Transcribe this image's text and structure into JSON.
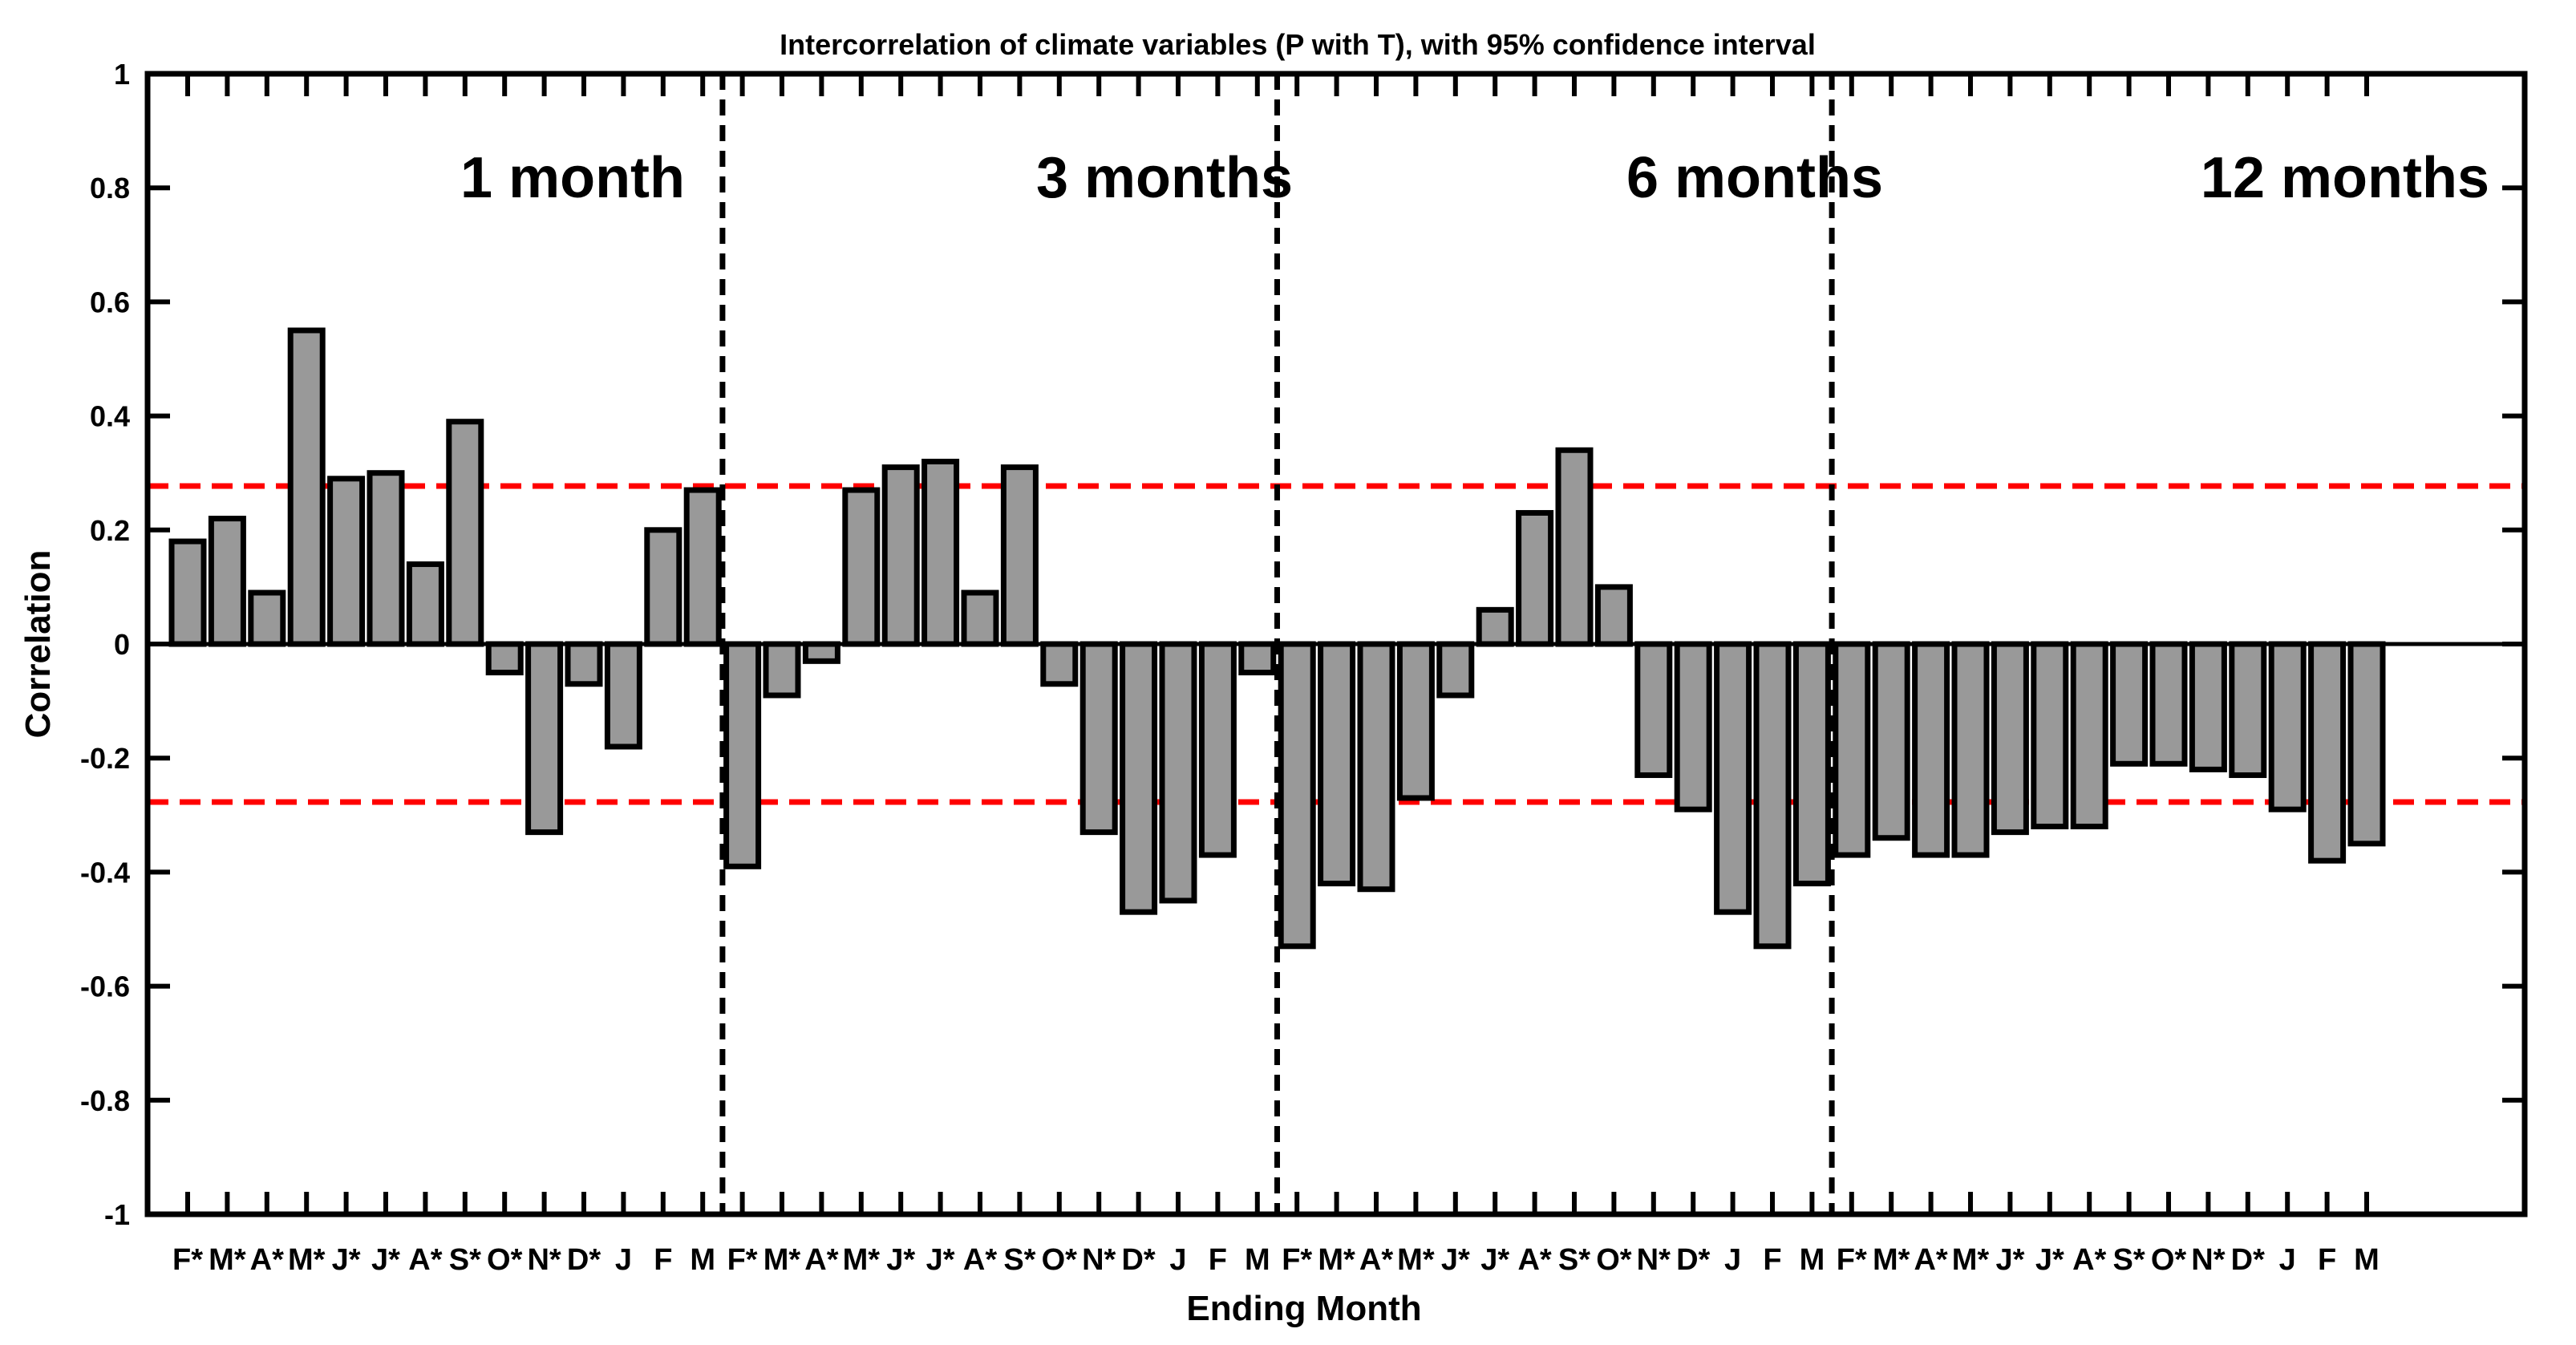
{
  "chart_data": {
    "type": "bar",
    "title": "Intercorrelation of climate variables (P with T), with 95% confidence interval",
    "xlabel": "Ending Month",
    "ylabel": "Correlation",
    "ylim": [
      -1,
      1
    ],
    "yticks": [
      -1,
      -0.8,
      -0.6,
      -0.4,
      -0.2,
      0,
      0.2,
      0.4,
      0.6,
      0.8,
      1
    ],
    "ytick_labels": [
      "-1",
      "-0.8",
      "-0.6",
      "-0.4",
      "-0.2",
      "0",
      "0.2",
      "0.4",
      "0.6",
      "0.8",
      "1"
    ],
    "confidence_interval": [
      -0.277,
      0.277
    ],
    "colors": {
      "bar_fill": "#999999",
      "bar_edge": "#000000",
      "confidence_line": "#ff0000",
      "separator_line": "#000000"
    },
    "panels": [
      {
        "label": "1 month",
        "categories": [
          "F*",
          "M*",
          "A*",
          "M*",
          "J*",
          "J*",
          "A*",
          "S*",
          "O*",
          "N*",
          "D*",
          "J",
          "F",
          "M"
        ],
        "values": [
          0.18,
          0.22,
          0.09,
          0.55,
          0.29,
          0.3,
          0.14,
          0.39,
          -0.05,
          -0.33,
          -0.07,
          -0.18,
          0.2,
          0.27
        ]
      },
      {
        "label": "3 months",
        "categories": [
          "F*",
          "M*",
          "A*",
          "M*",
          "J*",
          "J*",
          "A*",
          "S*",
          "O*",
          "N*",
          "D*",
          "J",
          "F",
          "M"
        ],
        "values": [
          -0.39,
          -0.09,
          -0.03,
          0.27,
          0.31,
          0.32,
          0.09,
          0.31,
          -0.07,
          -0.33,
          -0.47,
          -0.45,
          -0.37,
          -0.05
        ]
      },
      {
        "label": "6 months",
        "categories": [
          "F*",
          "M*",
          "A*",
          "M*",
          "J*",
          "J*",
          "A*",
          "S*",
          "O*",
          "N*",
          "D*",
          "J",
          "F",
          "M"
        ],
        "values": [
          -0.53,
          -0.42,
          -0.43,
          -0.27,
          -0.09,
          0.06,
          0.23,
          0.34,
          0.1,
          -0.23,
          -0.29,
          -0.47,
          -0.53,
          -0.42
        ]
      },
      {
        "label": "12 months",
        "categories": [
          "F*",
          "M*",
          "A*",
          "M*",
          "J*",
          "J*",
          "A*",
          "S*",
          "O*",
          "N*",
          "D*",
          "J",
          "F",
          "M"
        ],
        "values": [
          -0.37,
          -0.34,
          -0.37,
          -0.37,
          -0.33,
          -0.32,
          -0.32,
          -0.21,
          -0.21,
          -0.22,
          -0.23,
          -0.29,
          -0.38,
          -0.35
        ]
      }
    ]
  }
}
